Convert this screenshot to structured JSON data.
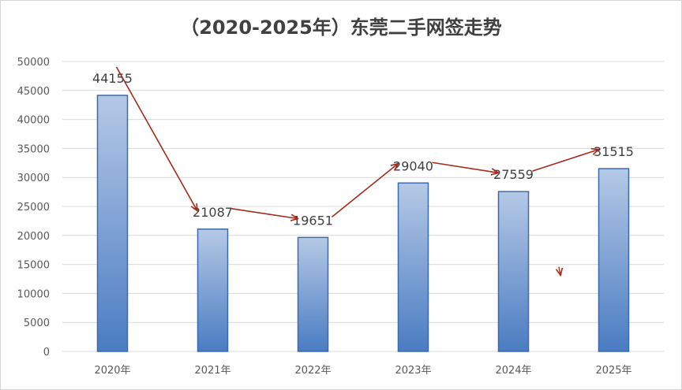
{
  "chart_data": {
    "type": "bar",
    "title": "（2020-2025年）东莞二手网签走势",
    "xlabel": "",
    "ylabel": "",
    "categories": [
      "2020年",
      "2021年",
      "2022年",
      "2023年",
      "2024年",
      "2025年"
    ],
    "values": [
      44155,
      21087,
      19651,
      29040,
      27559,
      31515
    ],
    "data_labels": [
      "44155",
      "21087",
      "19651",
      "29040",
      "27559",
      "31515"
    ],
    "ylim": [
      0,
      50000
    ],
    "yticks": [
      0,
      5000,
      10000,
      15000,
      20000,
      25000,
      30000,
      35000,
      40000,
      45000,
      50000
    ],
    "grid": true,
    "legend": "none",
    "colors": {
      "bar_top": "#b5c9e6",
      "bar_bottom": "#4a7cc2",
      "bar_border": "#3c6aad",
      "trend_arrow": "#a52a1a",
      "title": "#404040",
      "tick": "#595959"
    }
  }
}
